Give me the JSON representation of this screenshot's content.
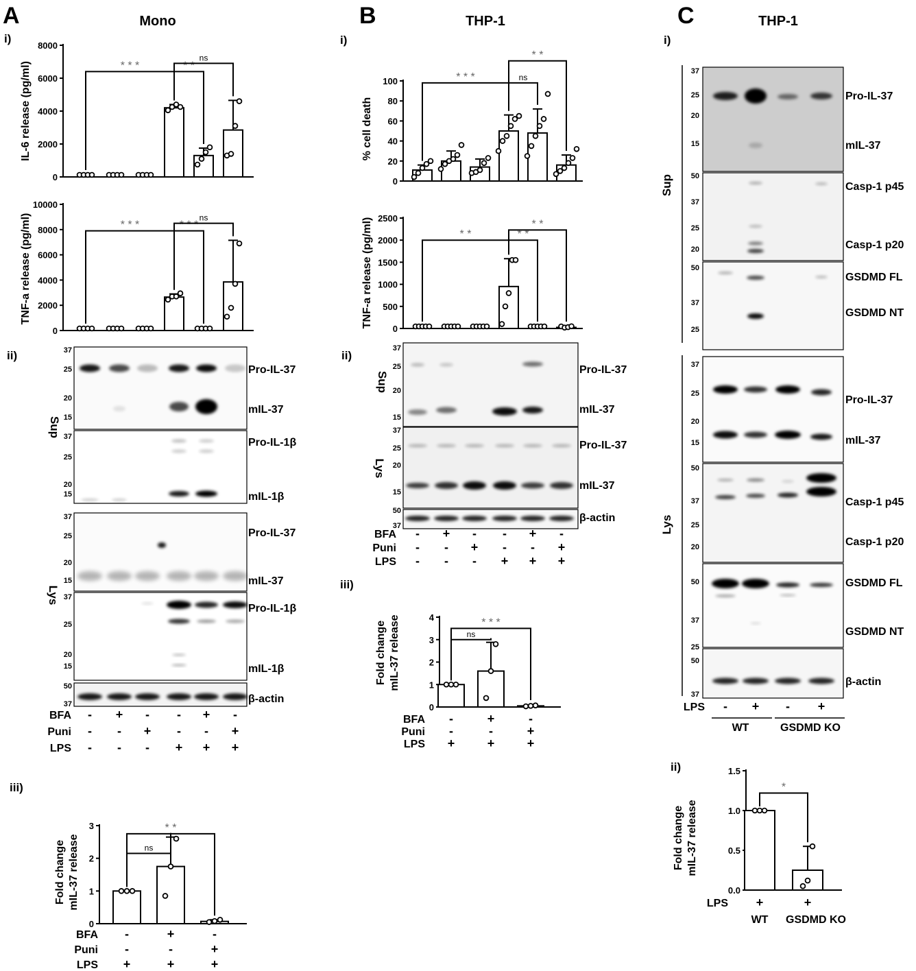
{
  "panels": {
    "A": {
      "letter": "A",
      "title": "Mono"
    },
    "B": {
      "letter": "B",
      "title": "THP-1"
    },
    "C": {
      "letter": "C",
      "title": "THP-1"
    }
  },
  "sublabels": {
    "i": "i)",
    "ii": "ii)",
    "iii": "iii)"
  },
  "chart_data": [
    {
      "id": "A-i-IL6",
      "type": "bar",
      "ylabel": "IL-6 release (pg/ml)",
      "ylim": [
        0,
        8000
      ],
      "yticks": [
        "0",
        "2000",
        "4000",
        "6000",
        "8000"
      ],
      "values": [
        0,
        0,
        0,
        4200,
        1300,
        2850
      ],
      "errors": [
        0,
        0,
        0,
        200,
        450,
        1800
      ],
      "points": [
        [
          0,
          0,
          0,
          0
        ],
        [
          0,
          0,
          0,
          0
        ],
        [
          0,
          0,
          0,
          0
        ],
        [
          4050,
          4250,
          4400,
          4250
        ],
        [
          750,
          1100,
          1500,
          1800
        ],
        [
          1300,
          1400,
          3100,
          4600
        ]
      ],
      "brackets": [
        {
          "from": 0,
          "to": 3,
          "label": "***",
          "level": 6400
        },
        {
          "from": 3,
          "to": 4,
          "label": "**",
          "level": 6400
        },
        {
          "from": 3,
          "to": 5,
          "label": "ns",
          "level": 6900
        }
      ]
    },
    {
      "id": "A-i-TNF",
      "type": "bar",
      "ylabel": "TNF-a release (pg/ml)",
      "ylim": [
        0,
        10000
      ],
      "yticks": [
        "0",
        "2000",
        "4000",
        "6000",
        "8000",
        "10000"
      ],
      "values": [
        0,
        0,
        0,
        2650,
        0,
        3850
      ],
      "errors": [
        0,
        0,
        0,
        250,
        0,
        3300
      ],
      "points": [
        [
          0,
          0,
          0,
          0
        ],
        [
          0,
          0,
          0,
          0
        ],
        [
          0,
          0,
          0,
          0
        ],
        [
          2450,
          2700,
          2700,
          2950
        ],
        [
          0,
          0,
          0,
          0
        ],
        [
          1100,
          1800,
          3700,
          6900
        ]
      ],
      "brackets": [
        {
          "from": 0,
          "to": 3,
          "label": "***",
          "level": 7900
        },
        {
          "from": 3,
          "to": 4,
          "label": "***",
          "level": 7900
        },
        {
          "from": 3,
          "to": 5,
          "label": "ns",
          "level": 8500
        }
      ]
    },
    {
      "id": "A-iii",
      "type": "bar",
      "ylabel": [
        "Fold change",
        "mIL-37 release"
      ],
      "ylim": [
        0,
        3
      ],
      "yticks": [
        "0",
        "1",
        "2",
        "3"
      ],
      "values": [
        1.0,
        1.75,
        0.07
      ],
      "errors": [
        0,
        0.9,
        0.05
      ],
      "points": [
        [
          1,
          1,
          1
        ],
        [
          0.85,
          1.75,
          2.6
        ],
        [
          0.05,
          0.08,
          0.12
        ]
      ],
      "brackets": [
        {
          "from": 0,
          "to": 1,
          "label": "ns",
          "level": 2.15
        },
        {
          "from": 0,
          "to": 2,
          "label": "**",
          "level": 2.75
        }
      ]
    },
    {
      "id": "B-i-death",
      "type": "bar",
      "ylabel": "% cell death",
      "ylim": [
        0,
        100
      ],
      "yticks": [
        "0",
        "20",
        "40",
        "60",
        "80",
        "100"
      ],
      "values": [
        11,
        20,
        14,
        50,
        48,
        16
      ],
      "errors": [
        5,
        10,
        8,
        16,
        24,
        10
      ],
      "points": [
        [
          4,
          8,
          13,
          17,
          20
        ],
        [
          12,
          17,
          20,
          22,
          26,
          36
        ],
        [
          8,
          9,
          11,
          18,
          23
        ],
        [
          30,
          40,
          45,
          55,
          62,
          65
        ],
        [
          25,
          35,
          45,
          55,
          62,
          87
        ],
        [
          7,
          10,
          13,
          18,
          23,
          32
        ]
      ],
      "brackets": [
        {
          "from": 0,
          "to": 3,
          "label": "***",
          "level": 98
        },
        {
          "from": 3,
          "to": 4,
          "label": "ns",
          "level": 98
        },
        {
          "from": 3,
          "to": 5,
          "label": "**",
          "level": 120
        }
      ]
    },
    {
      "id": "B-i-TNF",
      "type": "bar",
      "ylabel": "TNF-a release (pg/ml)",
      "ylim": [
        0,
        2500
      ],
      "yticks": [
        "0",
        "500",
        "1000",
        "1500",
        "2000",
        "2500"
      ],
      "values": [
        0,
        0,
        0,
        950,
        0,
        25
      ],
      "errors": [
        0,
        0,
        0,
        630,
        0,
        0
      ],
      "points": [
        [
          0,
          0,
          0,
          0,
          0
        ],
        [
          0,
          0,
          0,
          0,
          0
        ],
        [
          0,
          0,
          0,
          0,
          0
        ],
        [
          100,
          500,
          800,
          1550,
          1550
        ],
        [
          0,
          0,
          0,
          0,
          0
        ],
        [
          0,
          20,
          30,
          50
        ]
      ],
      "brackets": [
        {
          "from": 0,
          "to": 3,
          "label": "**",
          "level": 2000
        },
        {
          "from": 3,
          "to": 4,
          "label": "**",
          "level": 2000
        },
        {
          "from": 3,
          "to": 5,
          "label": "**",
          "level": 2230
        }
      ]
    },
    {
      "id": "B-iii",
      "type": "bar",
      "ylabel": [
        "Fold change",
        "mIL-37 release"
      ],
      "ylim": [
        0,
        4
      ],
      "yticks": [
        "0",
        "1",
        "2",
        "3",
        "4"
      ],
      "values": [
        1.0,
        1.6,
        0.05
      ],
      "errors": [
        0,
        1.28,
        0
      ],
      "points": [
        [
          1,
          1,
          1
        ],
        [
          0.4,
          1.6,
          2.8
        ],
        [
          0.03,
          0.05,
          0.07
        ]
      ],
      "brackets": [
        {
          "from": 0,
          "to": 1,
          "label": "ns",
          "level": 3.0
        },
        {
          "from": 0,
          "to": 2,
          "label": "***",
          "level": 3.5
        }
      ]
    },
    {
      "id": "C-ii",
      "type": "bar",
      "ylabel": [
        "Fold change",
        "mIL-37 release"
      ],
      "ylim": [
        0,
        1.5
      ],
      "yticks": [
        "0.0",
        "0.5",
        "1.0",
        "1.5"
      ],
      "values": [
        1.0,
        0.25
      ],
      "errors": [
        0,
        0.3
      ],
      "points": [
        [
          1,
          1,
          1
        ],
        [
          0.05,
          0.12,
          0.55
        ]
      ],
      "brackets": [
        {
          "from": 0,
          "to": 1,
          "label": "*",
          "level": 1.22
        }
      ]
    }
  ],
  "blots": {
    "A": {
      "groups": [
        {
          "label": "Sup",
          "strips": [
            {
              "mw": [
                "37",
                "25",
                "20",
                "15"
              ],
              "bands": [
                "Pro-IL-37",
                "mIL-37"
              ]
            },
            {
              "mw": [
                "37",
                "25",
                "20",
                "15"
              ],
              "bands": [
                "Pro-IL-1β",
                "mIL-1β"
              ]
            }
          ]
        },
        {
          "label": "Lys",
          "strips": [
            {
              "mw": [
                "37",
                "25",
                "20",
                "15"
              ],
              "bands": [
                "Pro-IL-37",
                "mIL-37"
              ]
            },
            {
              "mw": [
                "37",
                "25",
                "20",
                "15"
              ],
              "bands": [
                "Pro-IL-1β",
                "mIL-1β"
              ]
            },
            {
              "mw": [
                "50",
                "37"
              ],
              "bands": [
                "β-actin"
              ]
            }
          ]
        }
      ],
      "conditions": [
        {
          "name": "BFA",
          "signs": [
            "-",
            "+",
            "-",
            "-",
            "+",
            "-"
          ]
        },
        {
          "name": "Puni",
          "signs": [
            "-",
            "-",
            "+",
            "-",
            "-",
            "+"
          ]
        },
        {
          "name": "LPS",
          "signs": [
            "-",
            "-",
            "-",
            "+",
            "+",
            "+"
          ]
        }
      ]
    },
    "A_iii_conditions": [
      {
        "name": "BFA",
        "signs": [
          "-",
          "+",
          "-"
        ]
      },
      {
        "name": "Puni",
        "signs": [
          "-",
          "-",
          "+"
        ]
      },
      {
        "name": "LPS",
        "signs": [
          "+",
          "+",
          "+"
        ]
      }
    ],
    "B": {
      "groups": [
        {
          "label": "Sup",
          "strips": [
            {
              "mw": [
                "37",
                "25",
                "20",
                "15"
              ],
              "bands": [
                "Pro-IL-37",
                "mIL-37"
              ]
            }
          ]
        },
        {
          "label": "Lys",
          "strips": [
            {
              "mw": [
                "37",
                "25",
                "20",
                "15"
              ],
              "bands": [
                "Pro-IL-37",
                "mIL-37"
              ]
            },
            {
              "mw": [
                "50",
                "37"
              ],
              "bands": [
                "β-actin"
              ]
            }
          ]
        }
      ],
      "conditions": [
        {
          "name": "BFA",
          "signs": [
            "-",
            "+",
            "-",
            "-",
            "+",
            "-"
          ]
        },
        {
          "name": "Puni",
          "signs": [
            "-",
            "-",
            "+",
            "-",
            "-",
            "+"
          ]
        },
        {
          "name": "LPS",
          "signs": [
            "-",
            "-",
            "-",
            "+",
            "+",
            "+"
          ]
        }
      ]
    },
    "B_iii_conditions": [
      {
        "name": "BFA",
        "signs": [
          "-",
          "+",
          "-"
        ]
      },
      {
        "name": "Puni",
        "signs": [
          "-",
          "-",
          "+"
        ]
      },
      {
        "name": "LPS",
        "signs": [
          "+",
          "+",
          "+"
        ]
      }
    ],
    "C": {
      "groups": [
        {
          "label": "Sup",
          "strips": [
            {
              "mw": [
                "37",
                "25",
                "20",
                "15"
              ],
              "bands": [
                "Pro-IL-37",
                "mIL-37"
              ]
            },
            {
              "mw": [
                "50",
                "37",
                "25",
                "20"
              ],
              "bands": [
                "Casp-1 p45",
                "Casp-1 p20"
              ]
            },
            {
              "mw": [
                "50",
                "37",
                "25"
              ],
              "bands": [
                "GSDMD FL",
                "GSDMD NT"
              ]
            }
          ]
        },
        {
          "label": "Lys",
          "strips": [
            {
              "mw": [
                "37",
                "25",
                "20",
                "15"
              ],
              "bands": [
                "Pro-IL-37",
                "mIL-37"
              ]
            },
            {
              "mw": [
                "50",
                "37",
                "25",
                "20"
              ],
              "bands": [
                "Casp-1 p45",
                "Casp-1 p20"
              ]
            },
            {
              "mw": [
                "50",
                "37",
                "25"
              ],
              "bands": [
                "GSDMD FL",
                "GSDMD NT"
              ]
            },
            {
              "mw": [
                "50",
                "37"
              ],
              "bands": [
                "β-actin"
              ]
            }
          ]
        }
      ],
      "conditions": [
        {
          "name": "LPS",
          "signs": [
            "-",
            "+",
            "-",
            "+"
          ]
        }
      ],
      "genotypes": [
        "WT",
        "GSDMD KO"
      ]
    },
    "C_ii_conditions": [
      {
        "name": "LPS",
        "signs": [
          "+",
          "+"
        ]
      }
    ],
    "C_ii_genotypes": [
      "WT",
      "GSDMD KO"
    ]
  }
}
